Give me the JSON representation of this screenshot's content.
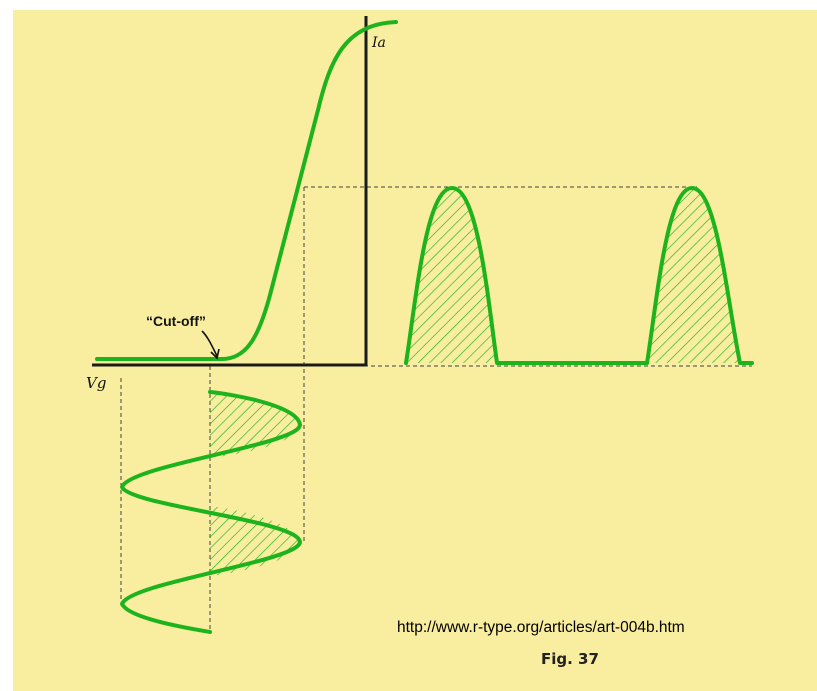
{
  "diagram": {
    "labels": {
      "cutoff": "“Cut-off”",
      "anode_current": "Ia",
      "grid_voltage": "Vg"
    },
    "source_url": "http://www.r-type.org/articles/art-004b.htm",
    "figure_caption": "Fig. 37"
  },
  "colors": {
    "background": "#f9ed9f",
    "curve": "#1db31d",
    "axis": "#1a1a1a",
    "projection": "#444444"
  }
}
